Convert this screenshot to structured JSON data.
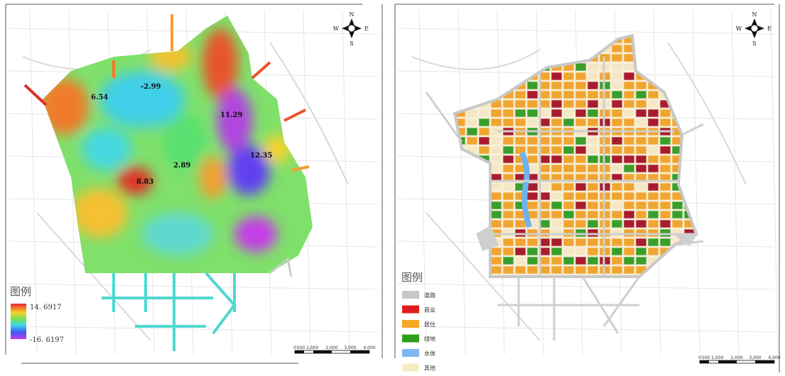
{
  "left_map": {
    "compass": {
      "n": "N",
      "w": "W",
      "e": "E",
      "s": "S"
    },
    "spot_labels": [
      "6.54",
      "-2.99",
      "11.29",
      "12.35",
      "2.89",
      "8.83"
    ],
    "legend": {
      "title": "图例",
      "max": "14. 6917",
      "min": "-16. 6197"
    },
    "scale_bar": [
      "0",
      "500 1,000",
      "2,000",
      "3,000",
      "4,000"
    ]
  },
  "right_map": {
    "compass": {
      "n": "N",
      "w": "W",
      "e": "E",
      "s": "S"
    },
    "legend": {
      "title": "图例",
      "items": [
        "道路",
        "商业",
        "居住",
        "绿地",
        "水体",
        "其他"
      ]
    },
    "scale_bar": [
      "0",
      "500 1,000",
      "2,000",
      "3,000",
      "4,000"
    ]
  }
}
